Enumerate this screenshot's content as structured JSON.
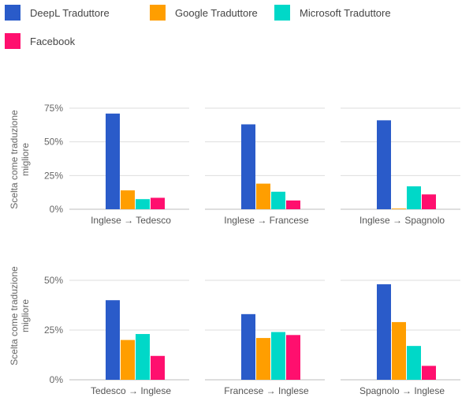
{
  "legend": [
    {
      "name": "DeepL Traduttore",
      "color": "#2a5bc9"
    },
    {
      "name": "Google Traduttore",
      "color": "#ff9e00"
    },
    {
      "name": "Microsoft Traduttore",
      "color": "#00d8c8"
    },
    {
      "name": "Facebook",
      "color": "#ff0f6e"
    }
  ],
  "chart_data": [
    {
      "type": "bar",
      "ylabel": "Scelta come traduzione migliore",
      "yticks": [
        "0%",
        "25%",
        "50%",
        "75%"
      ],
      "ylim": [
        0,
        75
      ],
      "grid": true,
      "legend_position": "top",
      "panels": [
        {
          "category": "Inglese → Tedesco",
          "series": [
            {
              "name": "DeepL Traduttore",
              "value": 71
            },
            {
              "name": "Google Traduttore",
              "value": 14
            },
            {
              "name": "Microsoft Traduttore",
              "value": 7.5
            },
            {
              "name": "Facebook",
              "value": 8.5
            }
          ]
        },
        {
          "category": "Inglese → Francese",
          "series": [
            {
              "name": "DeepL Traduttore",
              "value": 63
            },
            {
              "name": "Google Traduttore",
              "value": 19
            },
            {
              "name": "Microsoft Traduttore",
              "value": 13
            },
            {
              "name": "Facebook",
              "value": 6.5
            }
          ]
        },
        {
          "category": "Inglese → Spagnolo",
          "series": [
            {
              "name": "DeepL Traduttore",
              "value": 66
            },
            {
              "name": "Google Traduttore",
              "value": 0.5
            },
            {
              "name": "Microsoft Traduttore",
              "value": 17
            },
            {
              "name": "Facebook",
              "value": 11
            }
          ]
        }
      ]
    },
    {
      "type": "bar",
      "ylabel": "Scelta come traduzione migliore",
      "yticks": [
        "0%",
        "25%",
        "50%"
      ],
      "ylim": [
        0,
        50
      ],
      "grid": true,
      "legend_position": "top",
      "panels": [
        {
          "category": "Tedesco → Inglese",
          "series": [
            {
              "name": "DeepL Traduttore",
              "value": 40
            },
            {
              "name": "Google Traduttore",
              "value": 20
            },
            {
              "name": "Microsoft Traduttore",
              "value": 23
            },
            {
              "name": "Facebook",
              "value": 12
            }
          ]
        },
        {
          "category": "Francese → Inglese",
          "series": [
            {
              "name": "DeepL Traduttore",
              "value": 33
            },
            {
              "name": "Google Traduttore",
              "value": 21
            },
            {
              "name": "Microsoft Traduttore",
              "value": 24
            },
            {
              "name": "Facebook",
              "value": 22.5
            }
          ]
        },
        {
          "category": "Spagnolo → Inglese",
          "series": [
            {
              "name": "DeepL Traduttore",
              "value": 48
            },
            {
              "name": "Google Traduttore",
              "value": 29
            },
            {
              "name": "Microsoft Traduttore",
              "value": 17
            },
            {
              "name": "Facebook",
              "value": 7
            }
          ]
        }
      ]
    }
  ]
}
